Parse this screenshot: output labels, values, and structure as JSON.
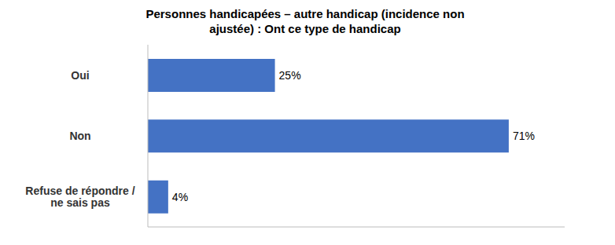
{
  "chart_data": {
    "type": "bar",
    "orientation": "horizontal",
    "title": "Personnes handicapées – autre handicap (incidence non\najustée) : Ont ce type de handicap",
    "categories": [
      "Oui",
      "Non",
      "Refuse de répondre /\nne sais pas"
    ],
    "values": [
      25,
      71,
      4
    ],
    "value_labels": [
      "25%",
      "71%",
      "4%"
    ],
    "data_labels": true,
    "color": "#4472C4",
    "xlim": [
      0,
      82
    ],
    "tick_labels": "y",
    "grid": false
  }
}
